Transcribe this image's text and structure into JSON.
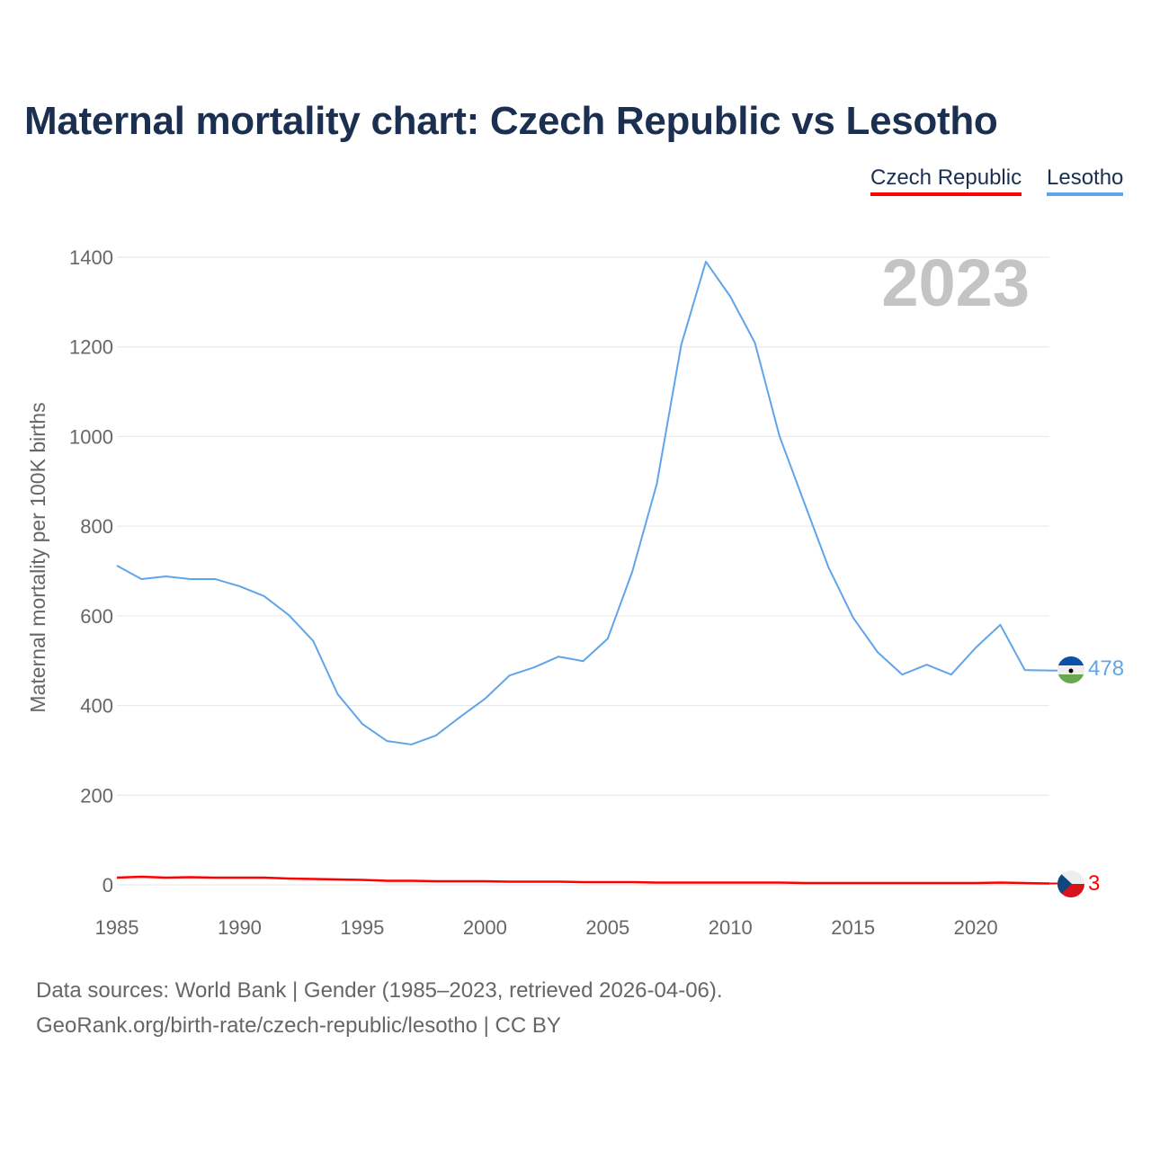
{
  "title": "Maternal mortality chart: Czech Republic vs Lesotho",
  "legend": [
    {
      "name": "Czech Republic",
      "color": "#ff0000"
    },
    {
      "name": "Lesotho",
      "color": "#5fa5e8"
    }
  ],
  "year_watermark": "2023",
  "footer": {
    "line1": "Data sources: World Bank | Gender (1985–2023, retrieved 2026-04-06).",
    "line2": "GeoRank.org/birth-rate/czech-republic/lesotho | CC BY"
  },
  "end_labels": {
    "lesotho": "478",
    "czech": "3"
  },
  "chart_data": {
    "type": "line",
    "title": "Maternal mortality chart: Czech Republic vs Lesotho",
    "xlabel": "",
    "ylabel": "Maternal mortality per 100K births",
    "xlim": [
      1985,
      2023
    ],
    "ylim": [
      0,
      1400
    ],
    "x_ticks": [
      1985,
      1990,
      1995,
      2000,
      2005,
      2010,
      2015,
      2020
    ],
    "y_ticks": [
      0,
      200,
      400,
      600,
      800,
      1000,
      1200,
      1400
    ],
    "grid": true,
    "legend_position": "top-right",
    "x": [
      1985,
      1986,
      1987,
      1988,
      1989,
      1990,
      1991,
      1992,
      1993,
      1994,
      1995,
      1996,
      1997,
      1998,
      1999,
      2000,
      2001,
      2002,
      2003,
      2004,
      2005,
      2006,
      2007,
      2008,
      2009,
      2010,
      2011,
      2012,
      2013,
      2014,
      2015,
      2016,
      2017,
      2018,
      2019,
      2020,
      2021,
      2022,
      2023
    ],
    "series": [
      {
        "name": "Czech Republic",
        "color": "#ff0000",
        "values": [
          16,
          18,
          16,
          17,
          16,
          16,
          16,
          14,
          13,
          12,
          11,
          9,
          9,
          8,
          8,
          8,
          7,
          7,
          7,
          6,
          6,
          6,
          5,
          5,
          5,
          5,
          5,
          5,
          4,
          4,
          4,
          4,
          4,
          4,
          4,
          4,
          5,
          4,
          3
        ]
      },
      {
        "name": "Lesotho",
        "color": "#5fa5e8",
        "values": [
          712,
          682,
          688,
          682,
          682,
          666,
          644,
          602,
          544,
          425,
          359,
          321,
          313,
          333,
          375,
          415,
          467,
          485,
          509,
          499,
          549,
          698,
          894,
          1205,
          1390,
          1312,
          1209,
          1001,
          854,
          708,
          596,
          519,
          469,
          491,
          469,
          529,
          580,
          479,
          478
        ]
      }
    ]
  }
}
